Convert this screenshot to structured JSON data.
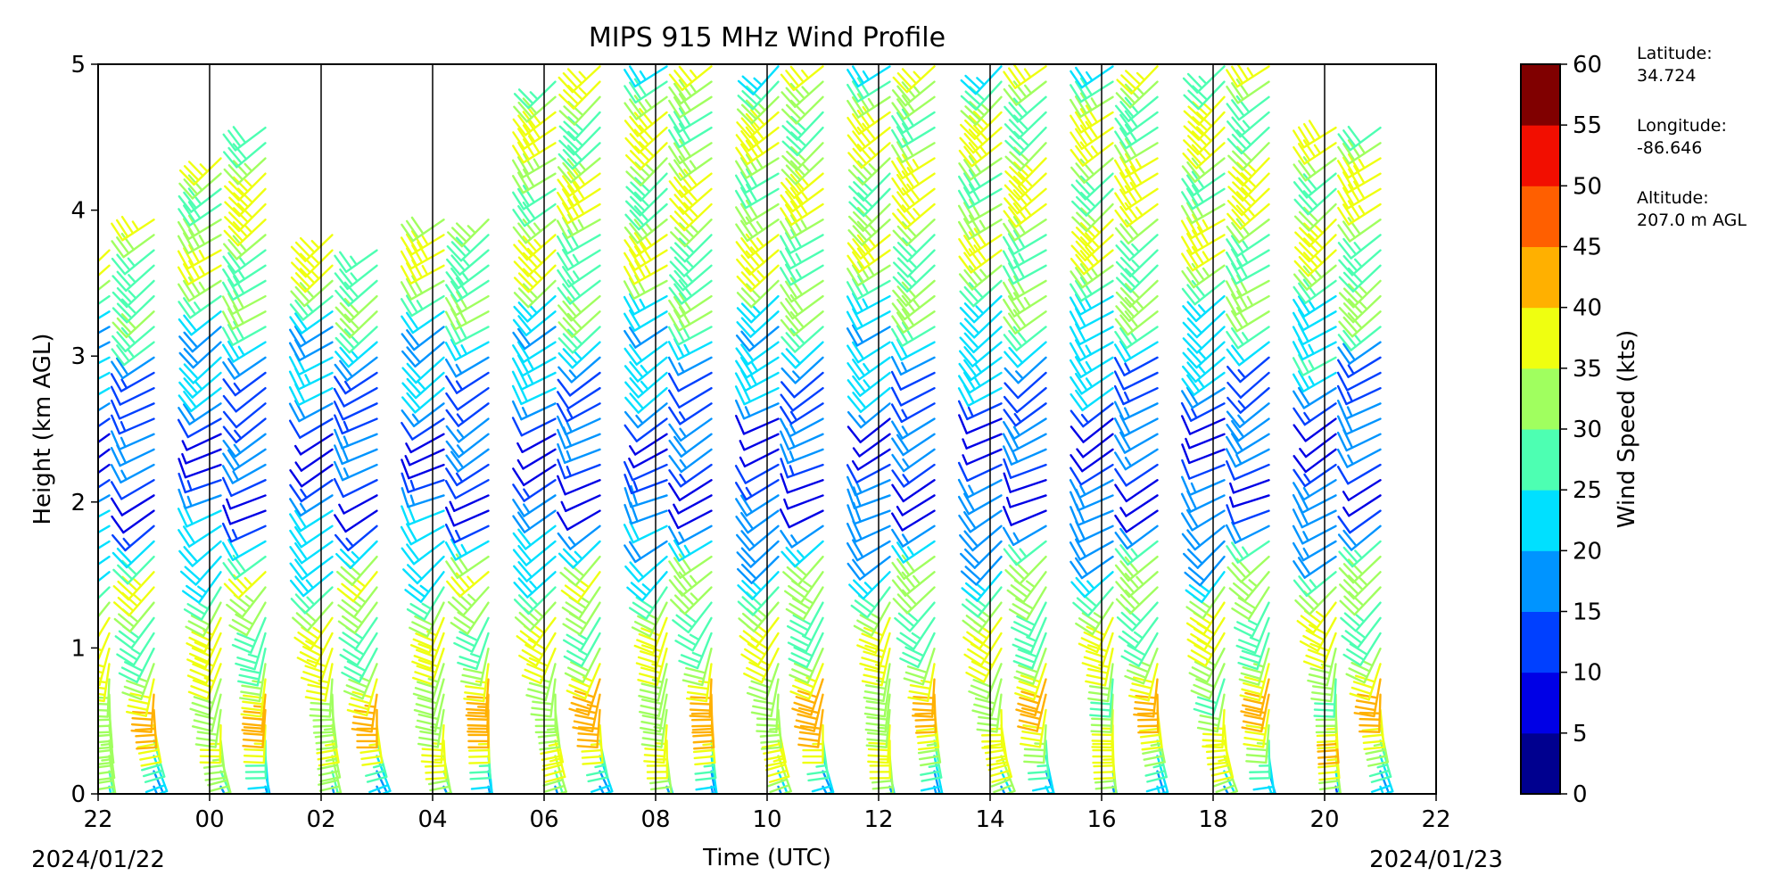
{
  "chart_data": {
    "type": "wind_barb_profile",
    "title": "MIPS 915 MHz Wind Profile",
    "xlabel": "Time (UTC)",
    "ylabel": "Height (km AGL)",
    "x_ticks": [
      "22",
      "00",
      "02",
      "04",
      "06",
      "08",
      "10",
      "12",
      "14",
      "16",
      "18",
      "20",
      "22"
    ],
    "x_range_hours": [
      0,
      24
    ],
    "y_ticks": [
      "0",
      "1",
      "2",
      "3",
      "4",
      "5"
    ],
    "ylim": [
      0,
      5
    ],
    "start_date": "2024/01/22",
    "end_date": "2024/01/23",
    "colorbar": {
      "label": "Wind Speed (kts)",
      "ticks": [
        "0",
        "5",
        "10",
        "15",
        "20",
        "25",
        "30",
        "35",
        "40",
        "45",
        "50",
        "55",
        "60"
      ],
      "range": [
        0,
        60
      ],
      "colors": [
        "#00008f",
        "#0000e6",
        "#0040ff",
        "#0094ff",
        "#00e0ff",
        "#4dffb2",
        "#a0ff5f",
        "#efff10",
        "#ffb000",
        "#ff5f00",
        "#f20e00",
        "#800000"
      ]
    },
    "station_info": {
      "latitude_label": "Latitude:",
      "latitude": "34.724",
      "longitude_label": "Longitude:",
      "longitude": "-86.646",
      "altitude_label": "Altitude:",
      "altitude": "207.0 m AGL"
    },
    "grid": "vertical lines every 2 hours",
    "profiles_hours": [
      0.2,
      1,
      2.2,
      3,
      4.2,
      5,
      6.2,
      7,
      8.2,
      9,
      10.2,
      11,
      12.2,
      13,
      14.2,
      15,
      16.2,
      17,
      18.2,
      19,
      20.2,
      21,
      22.2,
      23
    ],
    "profile_top_km": [
      3.8,
      4.0,
      4.45,
      4.6,
      3.9,
      3.8,
      4.0,
      3.95,
      4.9,
      5.0,
      5.0,
      5.0,
      5.0,
      5.0,
      5.0,
      5.0,
      5.0,
      5.0,
      5.0,
      5.0,
      5.0,
      5.0,
      4.6,
      4.6
    ],
    "speed_profile_kts": [
      {
        "height_km": 0.1,
        "speed": 18
      },
      {
        "height_km": 0.5,
        "speed": 38
      },
      {
        "height_km": 1.0,
        "speed": 34
      },
      {
        "height_km": 1.5,
        "speed": 30
      },
      {
        "height_km": 2.0,
        "speed": 12
      },
      {
        "height_km": 2.5,
        "speed": 12
      },
      {
        "height_km": 3.0,
        "speed": 20
      },
      {
        "height_km": 3.5,
        "speed": 30
      },
      {
        "height_km": 4.0,
        "speed": 34
      },
      {
        "height_km": 4.6,
        "speed": 34
      },
      {
        "height_km": 5.0,
        "speed": 30
      }
    ],
    "direction_profile_deg": [
      {
        "height_km": 0.1,
        "direction": 160
      },
      {
        "height_km": 1.0,
        "direction": 200
      },
      {
        "height_km": 2.0,
        "direction": 245
      },
      {
        "height_km": 3.0,
        "direction": 235
      },
      {
        "height_km": 5.0,
        "direction": 230
      }
    ]
  }
}
